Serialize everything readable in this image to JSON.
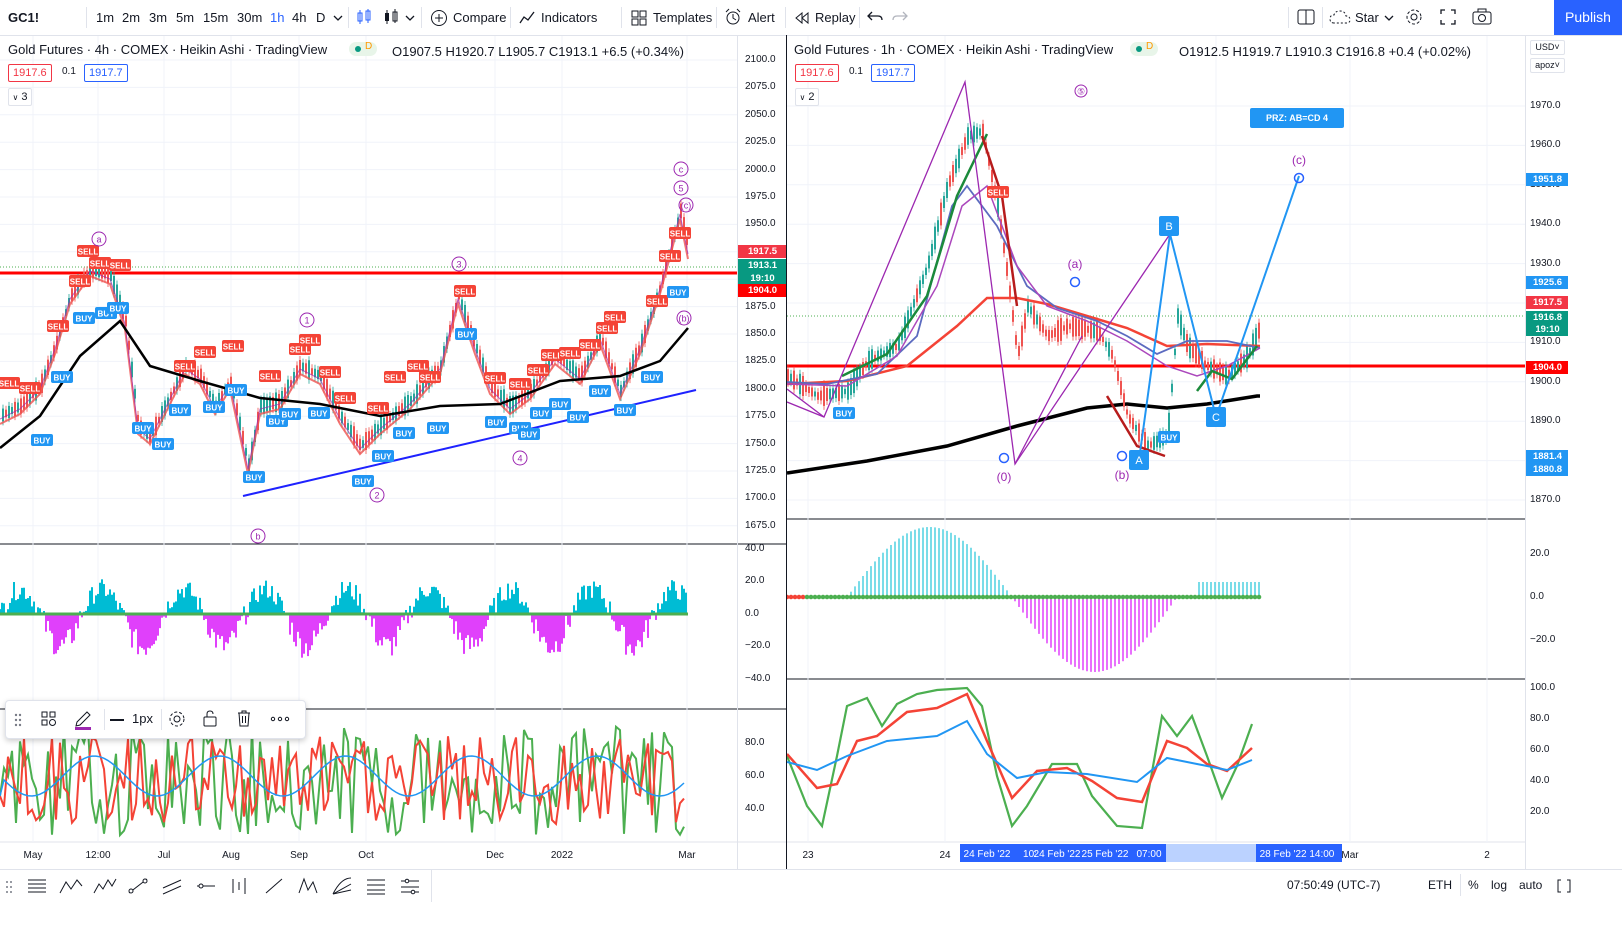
{
  "toolbar": {
    "symbol": "GC1!",
    "intervals": [
      "1m",
      "2m",
      "3m",
      "5m",
      "15m",
      "30m",
      "1h",
      "4h",
      "D"
    ],
    "active_interval": "1h",
    "compare_label": "Compare",
    "indicators_label": "Indicators",
    "templates_label": "Templates",
    "alert_label": "Alert",
    "replay_label": "Replay",
    "star_label": "Star",
    "publish_label": "Publish"
  },
  "left_chart": {
    "title": "Gold Futures · 4h · COMEX · Heikin Ashi · TradingView",
    "badge": "D",
    "ohlc": "O1907.5 H1920.7 L1905.7 C1913.1 +6.5 (+0.34%)",
    "bid": "1917.6",
    "spread": "0.1",
    "ask": "1917.7",
    "collapse_count": "3",
    "price_axis": [
      "2100.0",
      "2075.0",
      "2050.0",
      "2025.0",
      "2000.0",
      "1975.0",
      "1950.0",
      "1925.0",
      "1900.0",
      "1875.0",
      "1850.0",
      "1825.0",
      "1800.0",
      "1775.0",
      "1750.0",
      "1725.0",
      "1700.0",
      "1675.0"
    ],
    "tags": {
      "bid": "1917.5",
      "close": "1913.1",
      "countdown": "19:10",
      "line": "1904.0"
    },
    "osc_axis": [
      "40.0",
      "20.0",
      "0.0",
      "−20.0",
      "−40.0"
    ],
    "stoch_axis": [
      "80.0",
      "60.0",
      "40.0"
    ],
    "time_axis": [
      "May",
      "12:00",
      "Jul",
      "Aug",
      "Sep",
      "Oct",
      "Dec",
      "2022",
      "Mar"
    ],
    "wave_labels": [
      "a",
      "⑥",
      "⑤",
      "(c)",
      "(b)",
      "③",
      "①",
      "④",
      "②",
      "b"
    ]
  },
  "right_chart": {
    "title": "Gold Futures · 1h · COMEX · Heikin Ashi · TradingView",
    "badge": "D",
    "ohlc": "O1912.5 H1919.7 L1910.3 C1916.8 +0.4 (+0.02%)",
    "bid": "1917.6",
    "spread": "0.1",
    "ask": "1917.7",
    "collapse_count": "2",
    "currency": "USD",
    "apoz": "apoz",
    "price_axis": [
      "1970.0",
      "1960.0",
      "1950.0",
      "1940.0",
      "1930.0",
      "1920.0",
      "1910.0",
      "1900.0",
      "1890.0",
      "1880.0",
      "1870.0"
    ],
    "tags": {
      "target": "1951.8",
      "d": "1925.6",
      "bid": "1917.5",
      "close": "1916.8",
      "countdown": "19:10",
      "line": "1904.0",
      "low1": "1881.4",
      "low2": "1880.8"
    },
    "prz_label": "PRZ: AB=CD 4",
    "points": {
      "A": "A",
      "B": "B",
      "C": "C",
      "c": "(c)",
      "a": "(a)",
      "b": "(b)",
      "zero": "(0)",
      "five": "⑤"
    },
    "osc_axis": [
      "20.0",
      "0.0",
      "−20.0"
    ],
    "stoch_axis": [
      "100.0",
      "80.0",
      "60.0",
      "40.0",
      "20.0"
    ],
    "time_axis": [
      "23",
      "24",
      "28",
      "Mar",
      "2"
    ],
    "time_highlights": [
      "24 Feb '22",
      "10:",
      "24 Feb '22",
      "25 Feb '22",
      "07:00"
    ],
    "time_highlight2": "28 Feb '22   14:00"
  },
  "floatbar": {
    "width_label": "1px"
  },
  "bottombar": {
    "clock": "07:50:49 (UTC-7)",
    "session": "ETH",
    "percent": "%",
    "log": "log",
    "auto": "auto"
  },
  "colors": {
    "accent": "#2962ff",
    "red": "#f23645",
    "green": "#089981",
    "buy": "#2196f3",
    "sell": "#f44336",
    "purple": "#9c27b0"
  }
}
